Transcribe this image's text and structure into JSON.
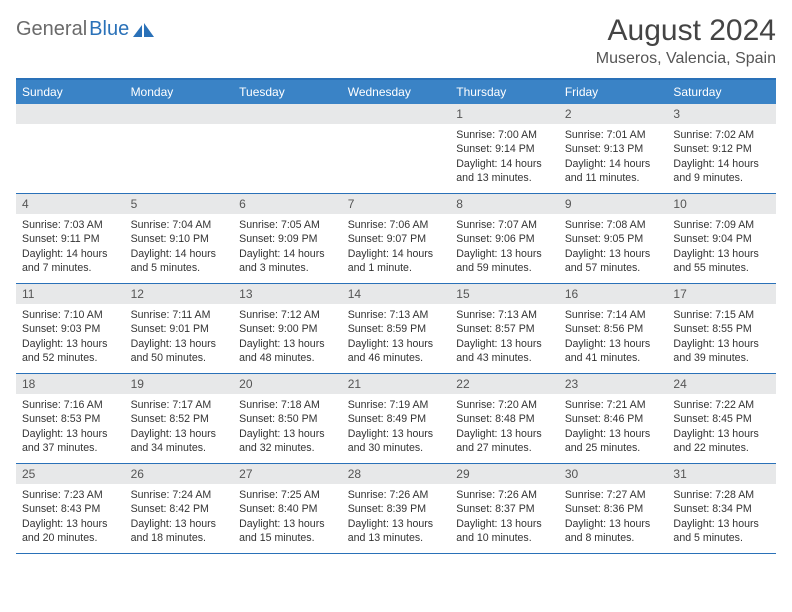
{
  "brand": {
    "part1": "General",
    "part2": "Blue"
  },
  "title": "August 2024",
  "location": "Museros, Valencia, Spain",
  "colors": {
    "header_bar": "#3a83c6",
    "border": "#2a71b8",
    "daynum_bg": "#e7e8e9",
    "logo_gray": "#6a6a6a",
    "logo_blue": "#2a71b8"
  },
  "daysOfWeek": [
    "Sunday",
    "Monday",
    "Tuesday",
    "Wednesday",
    "Thursday",
    "Friday",
    "Saturday"
  ],
  "startOffset": 4,
  "days": [
    {
      "n": "1",
      "sunrise": "7:00 AM",
      "sunset": "9:14 PM",
      "daylight": "14 hours and 13 minutes."
    },
    {
      "n": "2",
      "sunrise": "7:01 AM",
      "sunset": "9:13 PM",
      "daylight": "14 hours and 11 minutes."
    },
    {
      "n": "3",
      "sunrise": "7:02 AM",
      "sunset": "9:12 PM",
      "daylight": "14 hours and 9 minutes."
    },
    {
      "n": "4",
      "sunrise": "7:03 AM",
      "sunset": "9:11 PM",
      "daylight": "14 hours and 7 minutes."
    },
    {
      "n": "5",
      "sunrise": "7:04 AM",
      "sunset": "9:10 PM",
      "daylight": "14 hours and 5 minutes."
    },
    {
      "n": "6",
      "sunrise": "7:05 AM",
      "sunset": "9:09 PM",
      "daylight": "14 hours and 3 minutes."
    },
    {
      "n": "7",
      "sunrise": "7:06 AM",
      "sunset": "9:07 PM",
      "daylight": "14 hours and 1 minute."
    },
    {
      "n": "8",
      "sunrise": "7:07 AM",
      "sunset": "9:06 PM",
      "daylight": "13 hours and 59 minutes."
    },
    {
      "n": "9",
      "sunrise": "7:08 AM",
      "sunset": "9:05 PM",
      "daylight": "13 hours and 57 minutes."
    },
    {
      "n": "10",
      "sunrise": "7:09 AM",
      "sunset": "9:04 PM",
      "daylight": "13 hours and 55 minutes."
    },
    {
      "n": "11",
      "sunrise": "7:10 AM",
      "sunset": "9:03 PM",
      "daylight": "13 hours and 52 minutes."
    },
    {
      "n": "12",
      "sunrise": "7:11 AM",
      "sunset": "9:01 PM",
      "daylight": "13 hours and 50 minutes."
    },
    {
      "n": "13",
      "sunrise": "7:12 AM",
      "sunset": "9:00 PM",
      "daylight": "13 hours and 48 minutes."
    },
    {
      "n": "14",
      "sunrise": "7:13 AM",
      "sunset": "8:59 PM",
      "daylight": "13 hours and 46 minutes."
    },
    {
      "n": "15",
      "sunrise": "7:13 AM",
      "sunset": "8:57 PM",
      "daylight": "13 hours and 43 minutes."
    },
    {
      "n": "16",
      "sunrise": "7:14 AM",
      "sunset": "8:56 PM",
      "daylight": "13 hours and 41 minutes."
    },
    {
      "n": "17",
      "sunrise": "7:15 AM",
      "sunset": "8:55 PM",
      "daylight": "13 hours and 39 minutes."
    },
    {
      "n": "18",
      "sunrise": "7:16 AM",
      "sunset": "8:53 PM",
      "daylight": "13 hours and 37 minutes."
    },
    {
      "n": "19",
      "sunrise": "7:17 AM",
      "sunset": "8:52 PM",
      "daylight": "13 hours and 34 minutes."
    },
    {
      "n": "20",
      "sunrise": "7:18 AM",
      "sunset": "8:50 PM",
      "daylight": "13 hours and 32 minutes."
    },
    {
      "n": "21",
      "sunrise": "7:19 AM",
      "sunset": "8:49 PM",
      "daylight": "13 hours and 30 minutes."
    },
    {
      "n": "22",
      "sunrise": "7:20 AM",
      "sunset": "8:48 PM",
      "daylight": "13 hours and 27 minutes."
    },
    {
      "n": "23",
      "sunrise": "7:21 AM",
      "sunset": "8:46 PM",
      "daylight": "13 hours and 25 minutes."
    },
    {
      "n": "24",
      "sunrise": "7:22 AM",
      "sunset": "8:45 PM",
      "daylight": "13 hours and 22 minutes."
    },
    {
      "n": "25",
      "sunrise": "7:23 AM",
      "sunset": "8:43 PM",
      "daylight": "13 hours and 20 minutes."
    },
    {
      "n": "26",
      "sunrise": "7:24 AM",
      "sunset": "8:42 PM",
      "daylight": "13 hours and 18 minutes."
    },
    {
      "n": "27",
      "sunrise": "7:25 AM",
      "sunset": "8:40 PM",
      "daylight": "13 hours and 15 minutes."
    },
    {
      "n": "28",
      "sunrise": "7:26 AM",
      "sunset": "8:39 PM",
      "daylight": "13 hours and 13 minutes."
    },
    {
      "n": "29",
      "sunrise": "7:26 AM",
      "sunset": "8:37 PM",
      "daylight": "13 hours and 10 minutes."
    },
    {
      "n": "30",
      "sunrise": "7:27 AM",
      "sunset": "8:36 PM",
      "daylight": "13 hours and 8 minutes."
    },
    {
      "n": "31",
      "sunrise": "7:28 AM",
      "sunset": "8:34 PM",
      "daylight": "13 hours and 5 minutes."
    }
  ],
  "labels": {
    "sunrise": "Sunrise: ",
    "sunset": "Sunset: ",
    "daylight": "Daylight: "
  }
}
